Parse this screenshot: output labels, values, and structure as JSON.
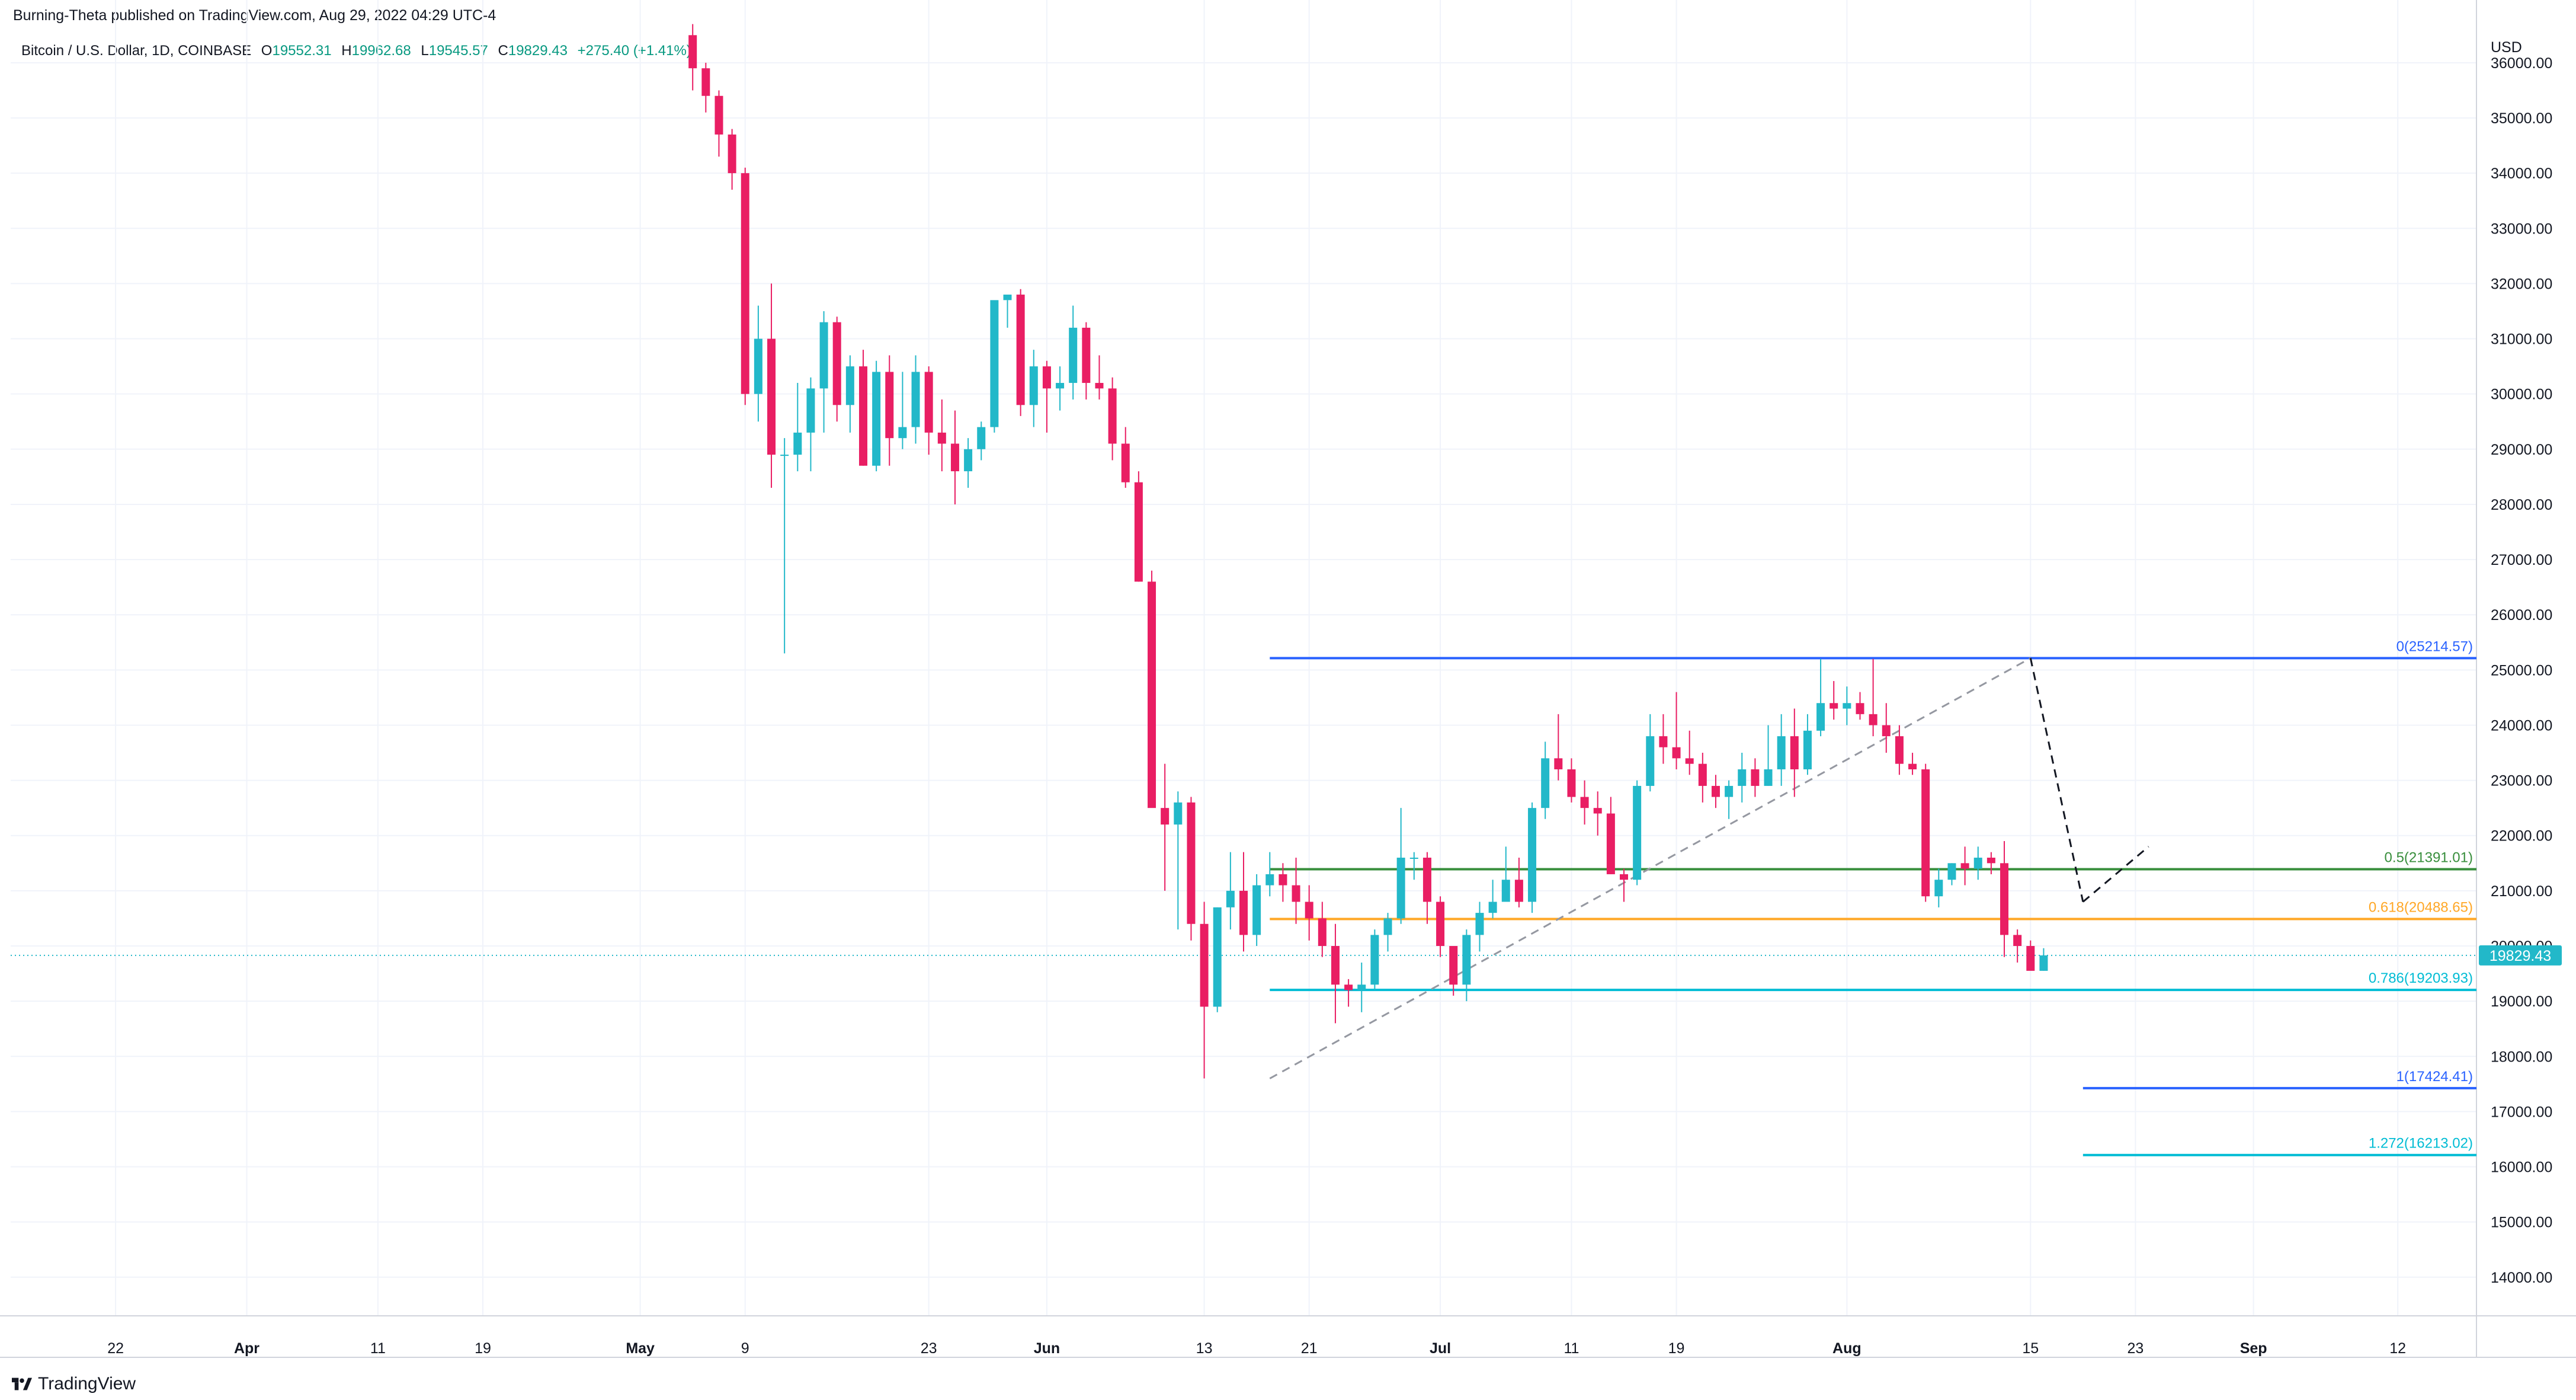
{
  "publisher_line": "Burning-Theta published on TradingView.com, Aug 29, 2022 04:29 UTC-4",
  "legend": {
    "symbol": "Bitcoin / U.S. Dollar, 1D, COINBASE",
    "open_label": "O",
    "open": "19552.31",
    "high_label": "H",
    "high": "19962.68",
    "low_label": "L",
    "low": "19545.57",
    "close_label": "C",
    "close": "19829.43",
    "change": "+275.40 (+1.41%)"
  },
  "footer_brand": "TradingView",
  "colors": {
    "up": "#22b8c9",
    "down": "#e91e63",
    "grid": "#f0f3fa",
    "fib_0": "#2962ff",
    "fib_05": "#388e3c",
    "fib_0618": "#ffa726",
    "fib_0786": "#00bcd4",
    "fib_1": "#2962ff",
    "fib_1272": "#00bcd4"
  },
  "chart_data": {
    "type": "candlestick",
    "currency_label": "USD",
    "ylim": [
      13300,
      36600
    ],
    "y_ticks": [
      14000,
      15000,
      16000,
      17000,
      18000,
      19000,
      20000,
      21000,
      22000,
      23000,
      24000,
      25000,
      26000,
      27000,
      28000,
      29000,
      30000,
      31000,
      32000,
      33000,
      34000,
      35000,
      36000
    ],
    "x_start": "2022-03-14",
    "x_end": "2022-09-18",
    "x_ticks": [
      {
        "date": "2022-03-22",
        "label": "22"
      },
      {
        "date": "2022-04-01",
        "label": "Apr"
      },
      {
        "date": "2022-04-11",
        "label": "11"
      },
      {
        "date": "2022-04-19",
        "label": "19"
      },
      {
        "date": "2022-05-01",
        "label": "May"
      },
      {
        "date": "2022-05-09",
        "label": "9"
      },
      {
        "date": "2022-05-23",
        "label": "23"
      },
      {
        "date": "2022-06-01",
        "label": "Jun"
      },
      {
        "date": "2022-06-13",
        "label": "13"
      },
      {
        "date": "2022-06-21",
        "label": "21"
      },
      {
        "date": "2022-07-01",
        "label": "Jul"
      },
      {
        "date": "2022-07-11",
        "label": "11"
      },
      {
        "date": "2022-07-19",
        "label": "19"
      },
      {
        "date": "2022-08-01",
        "label": "Aug"
      },
      {
        "date": "2022-08-15",
        "label": "15"
      },
      {
        "date": "2022-08-23",
        "label": "23"
      },
      {
        "date": "2022-09-01",
        "label": "Sep"
      },
      {
        "date": "2022-09-12",
        "label": "12"
      }
    ],
    "last_price": "19829.43",
    "candles_start": "2022-05-05",
    "candles": [
      [
        36500,
        36700,
        35500,
        35900
      ],
      [
        35900,
        36000,
        35100,
        35400
      ],
      [
        35400,
        35500,
        34300,
        34700
      ],
      [
        34700,
        34800,
        33700,
        34000
      ],
      [
        34000,
        34100,
        29800,
        30000
      ],
      [
        30000,
        31600,
        29500,
        31000
      ],
      [
        31000,
        32000,
        28300,
        28900
      ],
      [
        28900,
        29200,
        25300,
        28900
      ],
      [
        28900,
        30200,
        28600,
        29300
      ],
      [
        29300,
        30300,
        28600,
        30100
      ],
      [
        30100,
        31500,
        29300,
        31300
      ],
      [
        31300,
        31400,
        29500,
        29800
      ],
      [
        29800,
        30700,
        29300,
        30500
      ],
      [
        30500,
        30800,
        28700,
        28700
      ],
      [
        28700,
        30600,
        28600,
        30400
      ],
      [
        30400,
        30700,
        28700,
        29200
      ],
      [
        29200,
        30400,
        29000,
        29400
      ],
      [
        29400,
        30700,
        29100,
        30400
      ],
      [
        30400,
        30500,
        28900,
        29300
      ],
      [
        29300,
        29900,
        28600,
        29100
      ],
      [
        29100,
        29700,
        28000,
        28600
      ],
      [
        28600,
        29200,
        28300,
        29000
      ],
      [
        29000,
        29500,
        28800,
        29400
      ],
      [
        29400,
        31600,
        29300,
        31700
      ],
      [
        31700,
        31700,
        31200,
        31800
      ],
      [
        31800,
        31900,
        29600,
        29800
      ],
      [
        29800,
        30800,
        29400,
        30500
      ],
      [
        30500,
        30600,
        29300,
        30100
      ],
      [
        30100,
        30500,
        29700,
        30200
      ],
      [
        30200,
        31600,
        29900,
        31200
      ],
      [
        31200,
        31300,
        29900,
        30200
      ],
      [
        30200,
        30700,
        29900,
        30100
      ],
      [
        30100,
        30300,
        28800,
        29100
      ],
      [
        29100,
        29400,
        28300,
        28400
      ],
      [
        28400,
        28600,
        26600,
        26600
      ],
      [
        26600,
        26800,
        22600,
        22500
      ],
      [
        22500,
        23300,
        21000,
        22200
      ],
      [
        22200,
        22800,
        20300,
        22600
      ],
      [
        22600,
        22700,
        20100,
        20400
      ],
      [
        20400,
        20800,
        17600,
        18900
      ],
      [
        18900,
        20700,
        18800,
        20700
      ],
      [
        20700,
        21700,
        20300,
        21000
      ],
      [
        21000,
        21700,
        19900,
        20200
      ],
      [
        20200,
        21300,
        20000,
        21100
      ],
      [
        21100,
        21700,
        20900,
        21300
      ],
      [
        21300,
        21500,
        20800,
        21100
      ],
      [
        21100,
        21600,
        20400,
        20800
      ],
      [
        20800,
        21100,
        20100,
        20500
      ],
      [
        20500,
        20800,
        19800,
        20000
      ],
      [
        20000,
        20400,
        18600,
        19300
      ],
      [
        19300,
        19400,
        18900,
        19200
      ],
      [
        19200,
        19700,
        18800,
        19300
      ],
      [
        19300,
        20300,
        19200,
        20200
      ],
      [
        20200,
        20600,
        19900,
        20500
      ],
      [
        20500,
        22500,
        20400,
        21600
      ],
      [
        21600,
        21700,
        21200,
        21600
      ],
      [
        21600,
        21700,
        20400,
        20800
      ],
      [
        20800,
        20900,
        19800,
        20000
      ],
      [
        20000,
        20000,
        19100,
        19300
      ],
      [
        19300,
        20300,
        19000,
        20200
      ],
      [
        20200,
        20800,
        19900,
        20600
      ],
      [
        20600,
        21200,
        20500,
        20800
      ],
      [
        20800,
        21800,
        20800,
        21200
      ],
      [
        21200,
        21600,
        20700,
        20800
      ],
      [
        20800,
        22600,
        20600,
        22500
      ],
      [
        22500,
        23700,
        22300,
        23400
      ],
      [
        23400,
        24200,
        23000,
        23200
      ],
      [
        23200,
        23400,
        22600,
        22700
      ],
      [
        22700,
        23000,
        22200,
        22500
      ],
      [
        22500,
        22800,
        22000,
        22400
      ],
      [
        22400,
        22700,
        21300,
        21300
      ],
      [
        21300,
        21400,
        20800,
        21200
      ],
      [
        21200,
        23000,
        21100,
        22900
      ],
      [
        22900,
        24200,
        22800,
        23800
      ],
      [
        23800,
        24200,
        23300,
        23600
      ],
      [
        23600,
        24600,
        23200,
        23400
      ],
      [
        23400,
        23900,
        23100,
        23300
      ],
      [
        23300,
        23500,
        22600,
        22900
      ],
      [
        22900,
        23100,
        22500,
        22700
      ],
      [
        22700,
        23000,
        22300,
        22900
      ],
      [
        22900,
        23500,
        22600,
        23200
      ],
      [
        23200,
        23400,
        22700,
        22900
      ],
      [
        22900,
        24000,
        22900,
        23200
      ],
      [
        23200,
        24200,
        22900,
        23800
      ],
      [
        23800,
        24300,
        22700,
        23200
      ],
      [
        23200,
        24200,
        23100,
        23900
      ],
      [
        23900,
        25200,
        23800,
        24400
      ],
      [
        24400,
        24800,
        24100,
        24300
      ],
      [
        24300,
        24700,
        24000,
        24400
      ],
      [
        24400,
        24600,
        24100,
        24200
      ],
      [
        24200,
        25200,
        23800,
        24000
      ],
      [
        24000,
        24400,
        23500,
        23800
      ],
      [
        23800,
        24000,
        23100,
        23300
      ],
      [
        23300,
        23500,
        23100,
        23200
      ],
      [
        23200,
        23300,
        20800,
        20900
      ],
      [
        20900,
        21400,
        20700,
        21200
      ],
      [
        21200,
        21500,
        21100,
        21500
      ],
      [
        21500,
        21800,
        21100,
        21400
      ],
      [
        21400,
        21800,
        21200,
        21600
      ],
      [
        21600,
        21700,
        21300,
        21500
      ],
      [
        21500,
        21900,
        19800,
        20200
      ],
      [
        20200,
        20300,
        19700,
        20000
      ],
      [
        20000,
        20100,
        19600,
        19550
      ],
      [
        19550,
        19960,
        19550,
        19830
      ]
    ],
    "fib": [
      {
        "ratio": "0",
        "price": 25214.57,
        "label": "0(25214.57)",
        "color": "#2962ff",
        "from": "2022-06-18",
        "to": "2022-09-18"
      },
      {
        "ratio": "0.5",
        "price": 21391.01,
        "label": "0.5(21391.01)",
        "color": "#388e3c",
        "from": "2022-06-18",
        "to": "2022-09-18"
      },
      {
        "ratio": "0.618",
        "price": 20488.65,
        "label": "0.618(20488.65)",
        "color": "#ffa726",
        "from": "2022-06-18",
        "to": "2022-09-18"
      },
      {
        "ratio": "0.786",
        "price": 19203.93,
        "label": "0.786(19203.93)",
        "color": "#00bcd4",
        "from": "2022-06-18",
        "to": "2022-09-18"
      },
      {
        "ratio": "1",
        "price": 17424.41,
        "label": "1(17424.41)",
        "color": "#2962ff",
        "from": "2022-08-19",
        "to": "2022-09-18"
      },
      {
        "ratio": "1.272",
        "price": 16213.02,
        "label": "1.272(16213.02)",
        "color": "#00bcd4",
        "from": "2022-08-19",
        "to": "2022-09-18"
      }
    ],
    "trend_lines": [
      {
        "style": "dashed-gray",
        "from": [
          "2022-06-18",
          17600
        ],
        "to": [
          "2022-08-15",
          25214.57
        ]
      },
      {
        "style": "dashed-black",
        "from": [
          "2022-08-15",
          25214.57
        ],
        "to": [
          "2022-08-19",
          20800
        ]
      },
      {
        "style": "dashed-black",
        "from": [
          "2022-08-19",
          20800
        ],
        "to": [
          "2022-08-24",
          21800
        ]
      }
    ]
  }
}
